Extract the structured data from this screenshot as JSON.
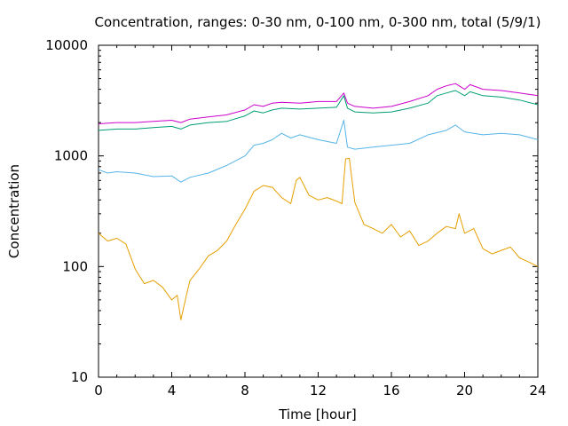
{
  "chart_data": {
    "type": "line",
    "title": "Concentration, ranges: 0-30 nm, 0-100 nm, 0-300 nm, total (5/9/1)",
    "xlabel": "Time [hour]",
    "ylabel": "Concentration",
    "xlim": [
      0,
      24
    ],
    "ylim": [
      10,
      10000
    ],
    "yscale": "log",
    "grid": false,
    "legend": "none",
    "x_ticks": [
      "0",
      "4",
      "8",
      "12",
      "16",
      "20",
      "24"
    ],
    "y_ticks": [
      "10",
      "100",
      "1000",
      "10000"
    ],
    "x_tick_values": [
      0,
      4,
      8,
      12,
      16,
      20,
      24
    ],
    "y_tick_values": [
      10,
      100,
      1000,
      10000
    ],
    "series": [
      {
        "color": "#cc00cc",
        "x": [
          0,
          1,
          2,
          3,
          4,
          4.5,
          5,
          6,
          7,
          8,
          8.5,
          9,
          9.5,
          10,
          11,
          12,
          13,
          13.4,
          13.6,
          14,
          15,
          16,
          17,
          18,
          18.5,
          19,
          19.5,
          20,
          20.3,
          21,
          22,
          23,
          24
        ],
        "y": [
          1950,
          2000,
          2000,
          2050,
          2100,
          2000,
          2150,
          2250,
          2350,
          2600,
          2900,
          2800,
          3000,
          3050,
          3000,
          3100,
          3100,
          3700,
          3000,
          2800,
          2700,
          2800,
          3100,
          3500,
          4000,
          4300,
          4500,
          4000,
          4400,
          4000,
          3900,
          3700,
          3500
        ]
      },
      {
        "color": "#009e73",
        "x": [
          0,
          1,
          2,
          3,
          4,
          4.5,
          5,
          6,
          7,
          8,
          8.5,
          9,
          9.5,
          10,
          11,
          12,
          13,
          13.4,
          13.6,
          14,
          15,
          16,
          17,
          18,
          18.5,
          19,
          19.5,
          20,
          20.3,
          21,
          22,
          23,
          24
        ],
        "y": [
          1700,
          1750,
          1750,
          1800,
          1850,
          1750,
          1900,
          2000,
          2050,
          2300,
          2550,
          2450,
          2600,
          2700,
          2650,
          2700,
          2750,
          3500,
          2700,
          2500,
          2450,
          2500,
          2700,
          3000,
          3500,
          3700,
          3900,
          3500,
          3800,
          3500,
          3400,
          3200,
          2900
        ]
      },
      {
        "color": "#56b4e9",
        "x": [
          0,
          0.5,
          1,
          2,
          3,
          4,
          4.5,
          5,
          6,
          7,
          8,
          8.5,
          9,
          9.5,
          10,
          10.5,
          11,
          12,
          13,
          13.4,
          13.6,
          14,
          15,
          16,
          17,
          18,
          19,
          19.5,
          20,
          21,
          22,
          23,
          24
        ],
        "y": [
          750,
          700,
          720,
          700,
          650,
          660,
          580,
          640,
          700,
          820,
          1000,
          1250,
          1300,
          1400,
          1600,
          1450,
          1550,
          1400,
          1300,
          2100,
          1200,
          1150,
          1200,
          1250,
          1300,
          1550,
          1700,
          1900,
          1650,
          1550,
          1600,
          1550,
          1400
        ]
      },
      {
        "color": "#e69f00",
        "x": [
          0,
          0.5,
          1,
          1.5,
          2,
          2.5,
          3,
          3.5,
          4,
          4.3,
          4.5,
          4.8,
          5,
          5.5,
          6,
          6.5,
          7,
          7.5,
          8,
          8.5,
          9,
          9.5,
          10,
          10.5,
          10.8,
          11,
          11.5,
          12,
          12.5,
          13,
          13.3,
          13.5,
          13.7,
          14,
          14.5,
          15,
          15.5,
          16,
          16.5,
          17,
          17.5,
          18,
          18.5,
          19,
          19.5,
          19.7,
          20,
          20.5,
          21,
          21.5,
          22,
          22.5,
          23,
          23.5,
          24
        ],
        "y": [
          200,
          170,
          180,
          160,
          95,
          70,
          75,
          65,
          50,
          55,
          33,
          55,
          75,
          95,
          125,
          140,
          170,
          240,
          330,
          480,
          540,
          520,
          420,
          370,
          600,
          640,
          440,
          400,
          420,
          390,
          370,
          940,
          950,
          380,
          240,
          220,
          200,
          240,
          185,
          210,
          155,
          170,
          200,
          230,
          220,
          300,
          200,
          220,
          145,
          130,
          140,
          150,
          120,
          110,
          100
        ]
      }
    ]
  }
}
